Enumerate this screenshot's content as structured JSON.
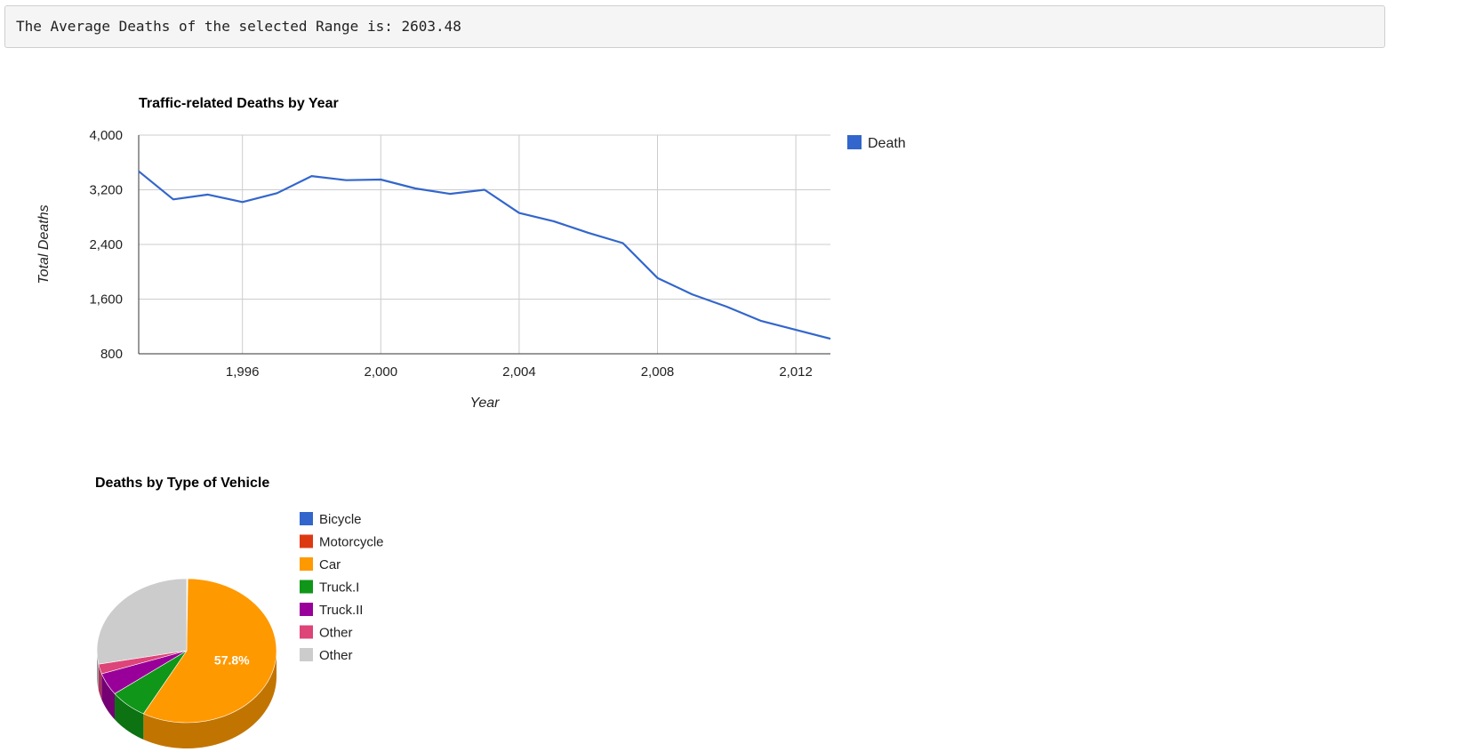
{
  "output": {
    "text": "The Average Deaths of the selected Range is: 2603.48"
  },
  "chart_data": [
    {
      "type": "line",
      "title": "Traffic-related Deaths by Year",
      "xlabel": "Year",
      "ylabel": "Total Deaths",
      "xlim": [
        1993,
        2013
      ],
      "ylim": [
        800,
        4000
      ],
      "x_ticks": [
        1996,
        2000,
        2004,
        2008,
        2012
      ],
      "x_tick_labels": [
        "1,996",
        "2,000",
        "2,004",
        "2,008",
        "2,012"
      ],
      "y_ticks": [
        800,
        1600,
        2400,
        3200,
        4000
      ],
      "y_tick_labels": [
        "800",
        "1,600",
        "2,400",
        "3,200",
        "4,000"
      ],
      "grid": true,
      "legend_position": "right",
      "series": [
        {
          "name": "Death",
          "color": "#3366cc",
          "x": [
            1993,
            1994,
            1995,
            1996,
            1997,
            1998,
            1999,
            2000,
            2001,
            2002,
            2003,
            2004,
            2005,
            2006,
            2007,
            2008,
            2009,
            2010,
            2011,
            2012,
            2013
          ],
          "y": [
            3470,
            3060,
            3130,
            3020,
            3150,
            3400,
            3340,
            3350,
            3220,
            3140,
            3200,
            2860,
            2740,
            2570,
            2420,
            1910,
            1670,
            1490,
            1280,
            1150,
            1020
          ]
        }
      ]
    },
    {
      "type": "pie",
      "title": "Deaths by Type of Vehicle",
      "legend_position": "right",
      "slices": [
        {
          "label": "Bicycle",
          "value": 0.1,
          "color": "#3366cc"
        },
        {
          "label": "Motorcycle",
          "value": 0.1,
          "color": "#dc3912"
        },
        {
          "label": "Car",
          "value": 57.8,
          "color": "#ff9900"
        },
        {
          "label": "Truck.I",
          "value": 6.8,
          "color": "#109618"
        },
        {
          "label": "Truck.II",
          "value": 5.0,
          "color": "#990099"
        },
        {
          "label": "Other",
          "value": 2.2,
          "color": "#dd4477"
        },
        {
          "label": "Other",
          "value": 28.0,
          "color": "#cccccc"
        }
      ],
      "slice_labels": [
        {
          "slice": 2,
          "text": "57.8%"
        }
      ]
    }
  ]
}
